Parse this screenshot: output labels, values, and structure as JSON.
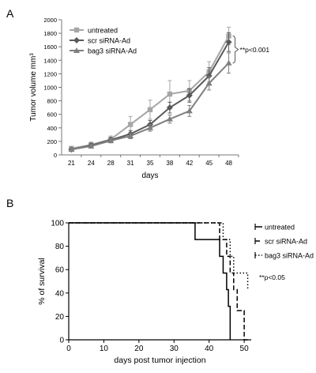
{
  "panels": [
    {
      "panel_label": "A",
      "type": "line",
      "xlabel": "days",
      "ylabel": "Tumor volume mm³",
      "x": [
        21,
        24,
        28,
        31,
        35,
        38,
        42,
        45,
        48
      ],
      "ylim": [
        0,
        2000
      ],
      "yticks": [
        0,
        200,
        400,
        600,
        800,
        1000,
        1200,
        1400,
        1600,
        1800,
        2000
      ],
      "grid": false,
      "legend": "top-left",
      "series": [
        {
          "name": "untreated",
          "color": "#a6a6a6",
          "marker": "square",
          "values": [
            95,
            150,
            230,
            450,
            670,
            900,
            950,
            1230,
            1760
          ],
          "errors": [
            30,
            40,
            50,
            120,
            140,
            200,
            150,
            150,
            130
          ]
        },
        {
          "name": "scr siRNA-Ad",
          "color": "#595959",
          "marker": "diamond",
          "values": [
            80,
            140,
            220,
            310,
            450,
            700,
            880,
            1170,
            1670
          ],
          "errors": [
            25,
            30,
            40,
            50,
            60,
            80,
            100,
            120,
            140
          ]
        },
        {
          "name": "bag3 siRNA-Ad",
          "color": "#7f7f7f",
          "marker": "triangle",
          "values": [
            80,
            130,
            210,
            280,
            400,
            530,
            650,
            1060,
            1360
          ],
          "errors": [
            20,
            30,
            30,
            40,
            50,
            60,
            80,
            100,
            150
          ]
        }
      ],
      "annotations": [
        {
          "text": "**p<0.001"
        }
      ]
    },
    {
      "panel_label": "B",
      "type": "line",
      "step": true,
      "xlabel": "days post tumor injection",
      "ylabel": "% of survival",
      "xlim": [
        0,
        52
      ],
      "xticks": [
        0,
        10,
        20,
        30,
        40,
        50
      ],
      "ylim": [
        0,
        100
      ],
      "yticks": [
        0,
        20,
        40,
        60,
        80,
        100
      ],
      "grid": false,
      "legend": "right",
      "series": [
        {
          "name": "untreated",
          "color": "#000000",
          "dash": "solid",
          "points": [
            [
              0,
              100
            ],
            [
              36,
              100
            ],
            [
              36,
              85.7
            ],
            [
              43,
              85.7
            ],
            [
              43,
              71.4
            ],
            [
              44,
              71.4
            ],
            [
              44,
              57.1
            ],
            [
              45,
              57.1
            ],
            [
              45,
              42.9
            ],
            [
              45.5,
              42.9
            ],
            [
              45.5,
              28.6
            ],
            [
              46,
              28.6
            ],
            [
              46,
              0
            ]
          ]
        },
        {
          "name": "scr siRNA-Ad",
          "color": "#000000",
          "dash": "long",
          "points": [
            [
              0,
              100
            ],
            [
              43,
              100
            ],
            [
              43,
              85.7
            ],
            [
              45,
              85.7
            ],
            [
              45,
              71.4
            ],
            [
              46,
              71.4
            ],
            [
              46,
              57.1
            ],
            [
              47,
              57.1
            ],
            [
              47,
              42.9
            ],
            [
              48,
              42.9
            ],
            [
              48,
              25
            ],
            [
              50,
              25
            ],
            [
              50,
              0
            ],
            [
              51,
              0
            ]
          ]
        },
        {
          "name": "bag3 siRNA-Ad",
          "color": "#000000",
          "dash": "dot",
          "points": [
            [
              0,
              100
            ],
            [
              44,
              100
            ],
            [
              44,
              85.7
            ],
            [
              46,
              85.7
            ],
            [
              46,
              71.4
            ],
            [
              47,
              71.4
            ],
            [
              47,
              57.1
            ],
            [
              51,
              57.1
            ],
            [
              51,
              42.9
            ]
          ]
        }
      ],
      "annotations": [
        {
          "text": "**p<0.05"
        }
      ]
    }
  ]
}
